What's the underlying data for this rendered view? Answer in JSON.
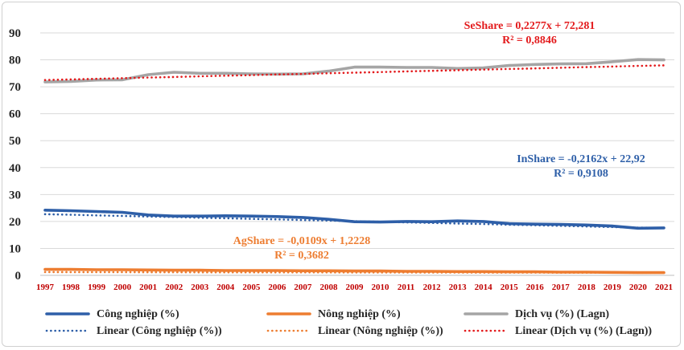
{
  "chart_data": {
    "type": "line",
    "x": [
      1997,
      1998,
      1999,
      2000,
      2001,
      2002,
      2003,
      2004,
      2005,
      2006,
      2007,
      2008,
      2009,
      2010,
      2011,
      2012,
      2013,
      2014,
      2015,
      2016,
      2017,
      2018,
      2019,
      2020,
      2021
    ],
    "ylim": [
      0,
      90
    ],
    "yticks": [
      0,
      10,
      20,
      30,
      40,
      50,
      60,
      70,
      80,
      90
    ],
    "grid": true,
    "legend_position": "bottom",
    "series": [
      {
        "name": "Công nghiệp (%)",
        "color": "#2e5fa8",
        "style": "solid",
        "values": [
          24.2,
          24.0,
          23.7,
          23.4,
          22.4,
          22.0,
          22.0,
          22.1,
          22.0,
          21.8,
          21.5,
          20.8,
          19.9,
          19.8,
          20.0,
          19.9,
          20.2,
          20.0,
          19.2,
          19.0,
          18.9,
          18.7,
          18.3,
          17.5,
          17.6
        ]
      },
      {
        "name": "Nông nghiệp (%)",
        "color": "#ed7d31",
        "style": "solid",
        "values": [
          2.2,
          2.2,
          2.1,
          2.1,
          2.0,
          1.9,
          1.9,
          1.8,
          1.8,
          1.8,
          1.7,
          1.7,
          1.6,
          1.6,
          1.5,
          1.5,
          1.4,
          1.4,
          1.3,
          1.3,
          1.2,
          1.2,
          1.1,
          1.0,
          1.0
        ]
      },
      {
        "name": "Dịch vụ (%) (Lagn)",
        "color": "#a5a5a5",
        "style": "solid",
        "values": [
          71.8,
          72.0,
          72.5,
          72.6,
          74.5,
          75.4,
          75.0,
          75.0,
          74.8,
          74.7,
          74.8,
          75.8,
          77.3,
          77.3,
          77.2,
          77.2,
          76.8,
          77.0,
          77.9,
          78.3,
          78.5,
          78.6,
          79.3,
          80.1,
          80.0
        ]
      },
      {
        "name": "Linear (Công nghiệp (%))",
        "color": "#2e5fa8",
        "style": "dotted",
        "trend": {
          "slope": -0.2162,
          "intercept": 22.92
        }
      },
      {
        "name": "Linear (Nông nghiệp (%))",
        "color": "#ed7d31",
        "style": "dotted",
        "trend": {
          "slope": -0.0109,
          "intercept": 1.2228
        }
      },
      {
        "name": "Linear (Dịch vụ (%) (Lagn))",
        "color": "#e31a1c",
        "style": "dotted",
        "trend": {
          "slope": 0.2277,
          "intercept": 72.281
        }
      }
    ],
    "annotations": [
      {
        "id": "se",
        "line1": "SeShare = 0,2277x + 72,281",
        "line2": "R² = 0,8846",
        "color": "#e31a1c"
      },
      {
        "id": "in",
        "line1": "InShare = -0,2162x + 22,92",
        "line2": "R² = 0,9108",
        "color": "#2e5fa8"
      },
      {
        "id": "ag",
        "line1": "AgShare = -0,0109x + 1,2228",
        "line2": "R² = 0,3682",
        "color": "#ed7d31"
      }
    ]
  }
}
